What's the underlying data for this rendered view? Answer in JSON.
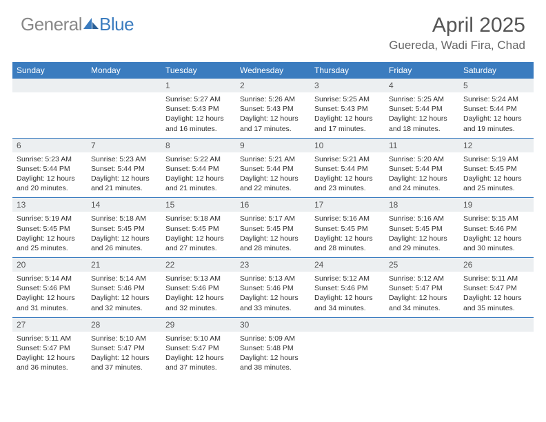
{
  "logo": {
    "part1": "General",
    "part2": "Blue"
  },
  "title": "April 2025",
  "location": "Guereda, Wadi Fira, Chad",
  "colors": {
    "header_bg": "#3b7cbf",
    "daynum_bg": "#eceff1",
    "border": "#3b7cbf",
    "text": "#333333",
    "logo_gray": "#888888",
    "logo_blue": "#3b7cbf"
  },
  "weekdays": [
    "Sunday",
    "Monday",
    "Tuesday",
    "Wednesday",
    "Thursday",
    "Friday",
    "Saturday"
  ],
  "weeks": [
    [
      null,
      null,
      {
        "n": 1,
        "sr": "5:27 AM",
        "ss": "5:43 PM",
        "dl": "12 hours and 16 minutes."
      },
      {
        "n": 2,
        "sr": "5:26 AM",
        "ss": "5:43 PM",
        "dl": "12 hours and 17 minutes."
      },
      {
        "n": 3,
        "sr": "5:25 AM",
        "ss": "5:43 PM",
        "dl": "12 hours and 17 minutes."
      },
      {
        "n": 4,
        "sr": "5:25 AM",
        "ss": "5:44 PM",
        "dl": "12 hours and 18 minutes."
      },
      {
        "n": 5,
        "sr": "5:24 AM",
        "ss": "5:44 PM",
        "dl": "12 hours and 19 minutes."
      }
    ],
    [
      {
        "n": 6,
        "sr": "5:23 AM",
        "ss": "5:44 PM",
        "dl": "12 hours and 20 minutes."
      },
      {
        "n": 7,
        "sr": "5:23 AM",
        "ss": "5:44 PM",
        "dl": "12 hours and 21 minutes."
      },
      {
        "n": 8,
        "sr": "5:22 AM",
        "ss": "5:44 PM",
        "dl": "12 hours and 21 minutes."
      },
      {
        "n": 9,
        "sr": "5:21 AM",
        "ss": "5:44 PM",
        "dl": "12 hours and 22 minutes."
      },
      {
        "n": 10,
        "sr": "5:21 AM",
        "ss": "5:44 PM",
        "dl": "12 hours and 23 minutes."
      },
      {
        "n": 11,
        "sr": "5:20 AM",
        "ss": "5:44 PM",
        "dl": "12 hours and 24 minutes."
      },
      {
        "n": 12,
        "sr": "5:19 AM",
        "ss": "5:45 PM",
        "dl": "12 hours and 25 minutes."
      }
    ],
    [
      {
        "n": 13,
        "sr": "5:19 AM",
        "ss": "5:45 PM",
        "dl": "12 hours and 25 minutes."
      },
      {
        "n": 14,
        "sr": "5:18 AM",
        "ss": "5:45 PM",
        "dl": "12 hours and 26 minutes."
      },
      {
        "n": 15,
        "sr": "5:18 AM",
        "ss": "5:45 PM",
        "dl": "12 hours and 27 minutes."
      },
      {
        "n": 16,
        "sr": "5:17 AM",
        "ss": "5:45 PM",
        "dl": "12 hours and 28 minutes."
      },
      {
        "n": 17,
        "sr": "5:16 AM",
        "ss": "5:45 PM",
        "dl": "12 hours and 28 minutes."
      },
      {
        "n": 18,
        "sr": "5:16 AM",
        "ss": "5:45 PM",
        "dl": "12 hours and 29 minutes."
      },
      {
        "n": 19,
        "sr": "5:15 AM",
        "ss": "5:46 PM",
        "dl": "12 hours and 30 minutes."
      }
    ],
    [
      {
        "n": 20,
        "sr": "5:14 AM",
        "ss": "5:46 PM",
        "dl": "12 hours and 31 minutes."
      },
      {
        "n": 21,
        "sr": "5:14 AM",
        "ss": "5:46 PM",
        "dl": "12 hours and 32 minutes."
      },
      {
        "n": 22,
        "sr": "5:13 AM",
        "ss": "5:46 PM",
        "dl": "12 hours and 32 minutes."
      },
      {
        "n": 23,
        "sr": "5:13 AM",
        "ss": "5:46 PM",
        "dl": "12 hours and 33 minutes."
      },
      {
        "n": 24,
        "sr": "5:12 AM",
        "ss": "5:46 PM",
        "dl": "12 hours and 34 minutes."
      },
      {
        "n": 25,
        "sr": "5:12 AM",
        "ss": "5:47 PM",
        "dl": "12 hours and 34 minutes."
      },
      {
        "n": 26,
        "sr": "5:11 AM",
        "ss": "5:47 PM",
        "dl": "12 hours and 35 minutes."
      }
    ],
    [
      {
        "n": 27,
        "sr": "5:11 AM",
        "ss": "5:47 PM",
        "dl": "12 hours and 36 minutes."
      },
      {
        "n": 28,
        "sr": "5:10 AM",
        "ss": "5:47 PM",
        "dl": "12 hours and 37 minutes."
      },
      {
        "n": 29,
        "sr": "5:10 AM",
        "ss": "5:47 PM",
        "dl": "12 hours and 37 minutes."
      },
      {
        "n": 30,
        "sr": "5:09 AM",
        "ss": "5:48 PM",
        "dl": "12 hours and 38 minutes."
      },
      null,
      null,
      null
    ]
  ],
  "labels": {
    "sunrise": "Sunrise:",
    "sunset": "Sunset:",
    "daylight": "Daylight:"
  }
}
